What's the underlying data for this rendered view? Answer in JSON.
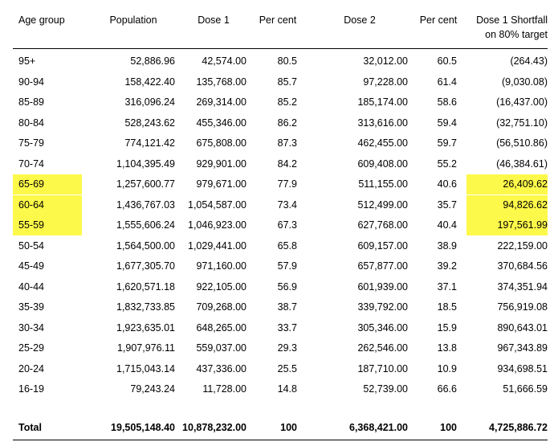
{
  "table": {
    "headers": [
      "Age group",
      "Population",
      "Dose 1",
      "Per cent",
      "Dose 2",
      "Per cent",
      "Dose 1 Shortfall on 80% target"
    ],
    "header_shortfall_line1": "Dose 1 Shortfall",
    "header_shortfall_line2": "on 80% target",
    "rows": [
      [
        "95+",
        "52,886.96",
        "42,574.00",
        "80.5",
        "32,012.00",
        "60.5",
        "(264.43)"
      ],
      [
        "90-94",
        "158,422.40",
        "135,768.00",
        "85.7",
        "97,228.00",
        "61.4",
        "(9,030.08)"
      ],
      [
        "85-89",
        "316,096.24",
        "269,314.00",
        "85.2",
        "185,174.00",
        "58.6",
        "(16,437.00)"
      ],
      [
        "80-84",
        "528,243.62",
        "455,346.00",
        "86.2",
        "313,616.00",
        "59.4",
        "(32,751.10)"
      ],
      [
        "75-79",
        "774,121.42",
        "675,808.00",
        "87.3",
        "462,455.00",
        "59.7",
        "(56,510.86)"
      ],
      [
        "70-74",
        "1,104,395.49",
        "929,901.00",
        "84.2",
        "609,408.00",
        "55.2",
        "(46,384.61)"
      ],
      [
        "65-69",
        "1,257,600.77",
        "979,671.00",
        "77.9",
        "511,155.00",
        "40.6",
        "26,409.62"
      ],
      [
        "60-64",
        "1,436,767.03",
        "1,054,587.00",
        "73.4",
        "512,499.00",
        "35.7",
        "94,826.62"
      ],
      [
        "55-59",
        "1,555,606.24",
        "1,046,923.00",
        "67.3",
        "627,768.00",
        "40.4",
        "197,561.99"
      ],
      [
        "50-54",
        "1,564,500.00",
        "1,029,441.00",
        "65.8",
        "609,157.00",
        "38.9",
        "222,159.00"
      ],
      [
        "45-49",
        "1,677,305.70",
        "971,160.00",
        "57.9",
        "657,877.00",
        "39.2",
        "370,684.56"
      ],
      [
        "40-44",
        "1,620,571.18",
        "922,105.00",
        "56.9",
        "601,939.00",
        "37.1",
        "374,351.94"
      ],
      [
        "35-39",
        "1,832,733.85",
        "709,268.00",
        "38.7",
        "339,792.00",
        "18.5",
        "756,919.08"
      ],
      [
        "30-34",
        "1,923,635.01",
        "648,265.00",
        "33.7",
        "305,346.00",
        "15.9",
        "890,643.01"
      ],
      [
        "25-29",
        "1,907,976.11",
        "559,037.00",
        "29.3",
        "262,546.00",
        "13.8",
        "967,343.89"
      ],
      [
        "20-24",
        "1,715,043.14",
        "437,336.00",
        "25.5",
        "187,710.00",
        "10.9",
        "934,698.51"
      ],
      [
        "16-19",
        "79,243.24",
        "11,728.00",
        "14.8",
        "52,739.00",
        "66.6",
        "51,666.59"
      ]
    ],
    "total": [
      "Total",
      "19,505,148.40",
      "10,878,232.00",
      "100",
      "6,368,421.00",
      "100",
      "4,725,886.72"
    ],
    "highlight_color": "#fdf94a",
    "highlighted_rows": [
      "65-69",
      "60-64",
      "55-59"
    ]
  }
}
